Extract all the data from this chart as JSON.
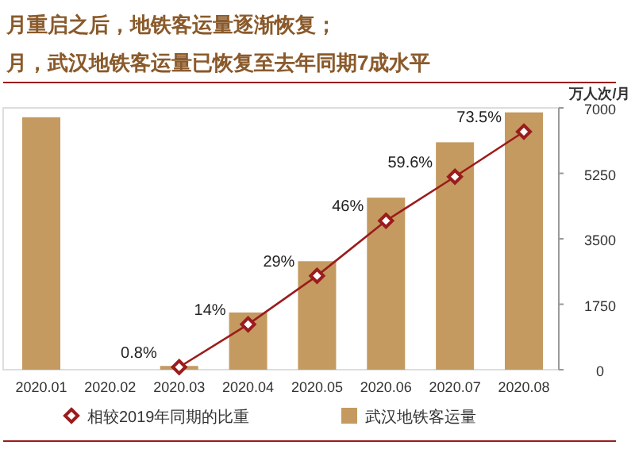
{
  "chart_data": {
    "type": "bar",
    "title": "月重启之后，地铁客运量逐渐恢复；",
    "subtitle": "月，武汉地铁客运量已恢复至去年同期7成水平",
    "ylabel": "万人次/月",
    "categories": [
      "2020.01",
      "2020.02",
      "2020.03",
      "2020.04",
      "2020.05",
      "2020.06",
      "2020.07",
      "2020.08"
    ],
    "series": [
      {
        "name": "相较2019年同期的比重",
        "type": "line",
        "axis": "y2",
        "color": "#9b1c1c",
        "values": [
          null,
          null,
          0.8,
          14,
          29,
          46,
          59.6,
          73.5
        ],
        "value_labels": [
          null,
          null,
          "0.8%",
          "14%",
          "29%",
          "46%",
          "59.6%",
          "73.5%"
        ]
      },
      {
        "name": "武汉地铁客运量",
        "color": "#c49a60",
        "values": [
          6750,
          0,
          100,
          1530,
          2900,
          4600,
          6080,
          6880
        ]
      }
    ],
    "ylim": [
      0,
      7000
    ],
    "yticks": [
      0,
      1750,
      3500,
      5250,
      7000
    ],
    "legend": "bottom",
    "marker": "diamond"
  }
}
